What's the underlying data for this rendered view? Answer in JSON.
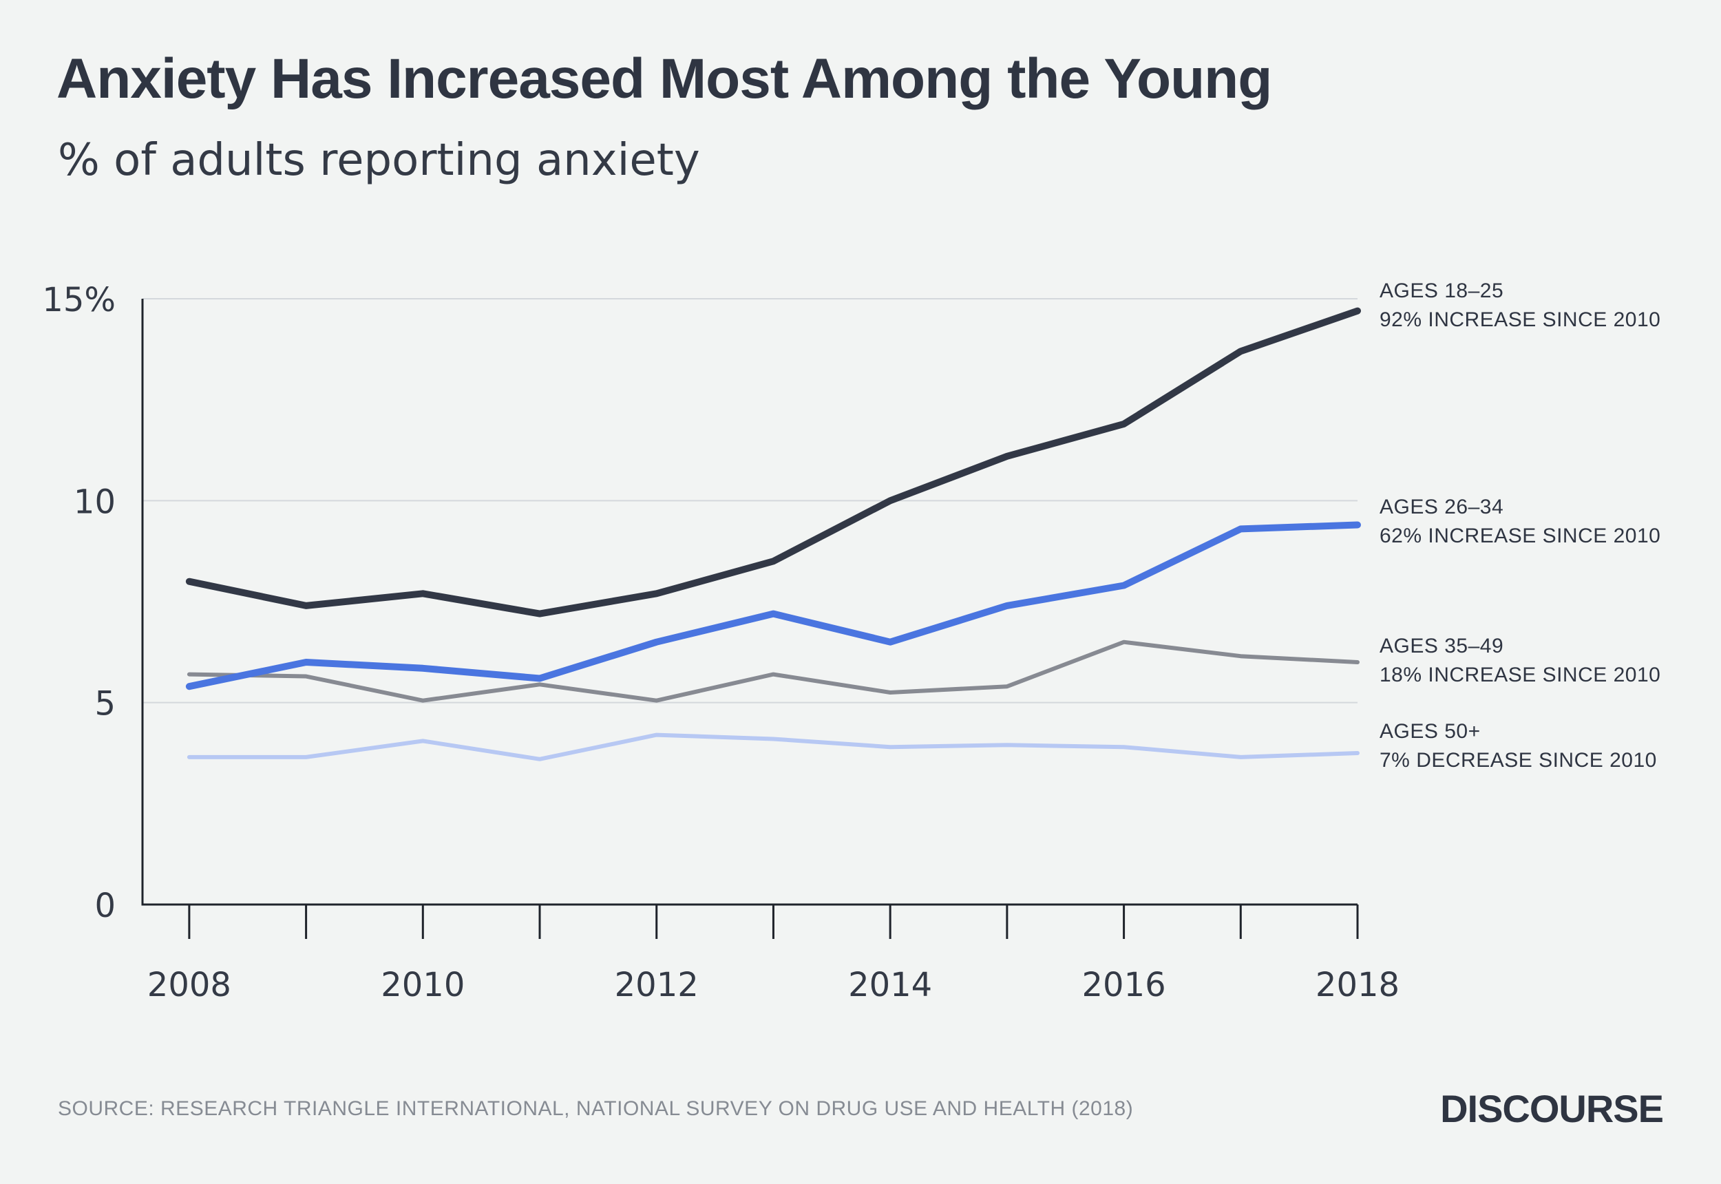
{
  "header": {
    "title": "Anxiety Has Increased Most Among the Young",
    "subtitle": "% of adults reporting anxiety"
  },
  "footer": {
    "source": "SOURCE: RESEARCH TRIANGLE INTERNATIONAL, NATIONAL SURVEY ON DRUG USE AND HEALTH (2018)",
    "brand": "DISCOURSE"
  },
  "chart_data": {
    "type": "line",
    "title": "Anxiety Has Increased Most Among the Young",
    "subtitle": "% of adults reporting anxiety",
    "xlabel": "",
    "ylabel": "",
    "x": [
      2008,
      2009,
      2010,
      2011,
      2012,
      2013,
      2014,
      2015,
      2016,
      2017,
      2018
    ],
    "xlim": [
      2007.6,
      2018
    ],
    "ylim": [
      0,
      15
    ],
    "x_ticks": [
      2008,
      2009,
      2010,
      2011,
      2012,
      2013,
      2014,
      2015,
      2016,
      2017,
      2018
    ],
    "x_tick_labels": [
      "2008",
      "",
      "2010",
      "",
      "2012",
      "",
      "2014",
      "",
      "2016",
      "",
      "2018"
    ],
    "y_ticks": [
      0,
      5,
      10,
      15
    ],
    "y_tick_labels": [
      "0",
      "5",
      "10",
      "15%"
    ],
    "grid": "horizontal",
    "legend": "direct labels at right end of lines",
    "series": [
      {
        "name": "AGES 18–25",
        "note": "92% INCREASE SINCE 2010",
        "color": "#323846",
        "values": [
          8.0,
          7.4,
          7.7,
          7.2,
          7.7,
          8.5,
          10.0,
          11.1,
          11.9,
          13.7,
          14.7
        ]
      },
      {
        "name": "AGES 26–34",
        "note": "62% INCREASE SINCE 2010",
        "color": "#4a75e0",
        "values": [
          5.4,
          6.0,
          5.85,
          5.6,
          6.5,
          7.2,
          6.5,
          7.4,
          7.9,
          9.3,
          9.4
        ]
      },
      {
        "name": "AGES 35–49",
        "note": "18% INCREASE SINCE 2010",
        "color": "#878a92",
        "values": [
          5.7,
          5.65,
          5.05,
          5.45,
          5.05,
          5.7,
          5.25,
          5.4,
          6.5,
          6.15,
          6.0
        ]
      },
      {
        "name": "AGES 50+",
        "note": "7% DECREASE SINCE 2010",
        "color": "#b7c8f3",
        "values": [
          3.65,
          3.65,
          4.05,
          3.6,
          4.2,
          4.1,
          3.9,
          3.95,
          3.9,
          3.65,
          3.75
        ]
      }
    ]
  }
}
